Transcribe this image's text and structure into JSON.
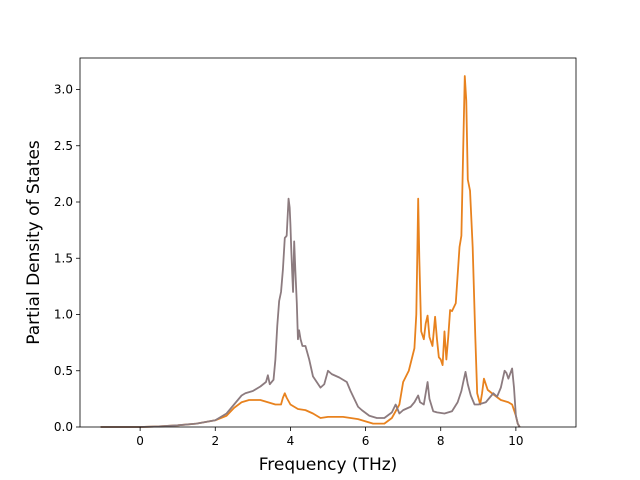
{
  "chart_data": {
    "type": "line",
    "title": "",
    "xlabel": "Frequency (THz)",
    "ylabel": "Partial Density of States",
    "xlim": [
      -1.6,
      11.6
    ],
    "ylim": [
      0,
      3.28
    ],
    "xticks": [
      0,
      2,
      4,
      6,
      8,
      10
    ],
    "yticks": [
      0.0,
      0.5,
      1.0,
      1.5,
      2.0,
      2.5,
      3.0
    ],
    "ytick_labels": [
      "0.0",
      "0.5",
      "1.0",
      "1.5",
      "2.0",
      "2.5",
      "3.0"
    ],
    "grid": false,
    "legend": "none",
    "series": [
      {
        "color": "#e8821e",
        "points": [
          [
            -1.05,
            0
          ],
          [
            0,
            0
          ],
          [
            0.5,
            0.005
          ],
          [
            1.0,
            0.015
          ],
          [
            1.5,
            0.03
          ],
          [
            2.0,
            0.06
          ],
          [
            2.3,
            0.1
          ],
          [
            2.5,
            0.17
          ],
          [
            2.7,
            0.22
          ],
          [
            2.9,
            0.24
          ],
          [
            3.2,
            0.24
          ],
          [
            3.4,
            0.22
          ],
          [
            3.6,
            0.2
          ],
          [
            3.75,
            0.2
          ],
          [
            3.8,
            0.26
          ],
          [
            3.85,
            0.3
          ],
          [
            3.9,
            0.26
          ],
          [
            4.0,
            0.2
          ],
          [
            4.2,
            0.16
          ],
          [
            4.4,
            0.15
          ],
          [
            4.6,
            0.12
          ],
          [
            4.8,
            0.08
          ],
          [
            5.0,
            0.09
          ],
          [
            5.4,
            0.09
          ],
          [
            5.8,
            0.07
          ],
          [
            6.0,
            0.05
          ],
          [
            6.2,
            0.03
          ],
          [
            6.5,
            0.03
          ],
          [
            6.7,
            0.08
          ],
          [
            6.9,
            0.2
          ],
          [
            7.0,
            0.4
          ],
          [
            7.15,
            0.5
          ],
          [
            7.3,
            0.7
          ],
          [
            7.35,
            1.0
          ],
          [
            7.38,
            1.6
          ],
          [
            7.4,
            2.03
          ],
          [
            7.43,
            1.5
          ],
          [
            7.48,
            0.85
          ],
          [
            7.55,
            0.78
          ],
          [
            7.6,
            0.92
          ],
          [
            7.65,
            0.99
          ],
          [
            7.7,
            0.8
          ],
          [
            7.78,
            0.72
          ],
          [
            7.85,
            0.98
          ],
          [
            7.9,
            0.78
          ],
          [
            7.95,
            0.62
          ],
          [
            8.0,
            0.6
          ],
          [
            8.05,
            0.55
          ],
          [
            8.1,
            0.85
          ],
          [
            8.15,
            0.6
          ],
          [
            8.2,
            0.8
          ],
          [
            8.25,
            1.04
          ],
          [
            8.3,
            1.03
          ],
          [
            8.4,
            1.1
          ],
          [
            8.5,
            1.6
          ],
          [
            8.55,
            1.7
          ],
          [
            8.6,
            2.5
          ],
          [
            8.64,
            3.12
          ],
          [
            8.68,
            2.9
          ],
          [
            8.72,
            2.2
          ],
          [
            8.78,
            2.1
          ],
          [
            8.85,
            1.6
          ],
          [
            8.92,
            0.8
          ],
          [
            8.97,
            0.3
          ],
          [
            9.05,
            0.2
          ],
          [
            9.1,
            0.3
          ],
          [
            9.15,
            0.43
          ],
          [
            9.25,
            0.33
          ],
          [
            9.4,
            0.29
          ],
          [
            9.6,
            0.24
          ],
          [
            9.8,
            0.22
          ],
          [
            9.9,
            0.2
          ],
          [
            9.95,
            0.15
          ],
          [
            10.0,
            0.1
          ],
          [
            10.05,
            0.03
          ],
          [
            10.1,
            0
          ]
        ]
      },
      {
        "color": "#8c7b7f",
        "points": [
          [
            -1.05,
            0
          ],
          [
            0,
            0
          ],
          [
            0.5,
            0.005
          ],
          [
            1.0,
            0.015
          ],
          [
            1.5,
            0.03
          ],
          [
            2.0,
            0.06
          ],
          [
            2.3,
            0.12
          ],
          [
            2.5,
            0.2
          ],
          [
            2.7,
            0.28
          ],
          [
            2.8,
            0.3
          ],
          [
            3.0,
            0.32
          ],
          [
            3.2,
            0.36
          ],
          [
            3.35,
            0.4
          ],
          [
            3.4,
            0.46
          ],
          [
            3.45,
            0.38
          ],
          [
            3.55,
            0.42
          ],
          [
            3.6,
            0.6
          ],
          [
            3.65,
            0.9
          ],
          [
            3.7,
            1.12
          ],
          [
            3.75,
            1.2
          ],
          [
            3.8,
            1.4
          ],
          [
            3.85,
            1.68
          ],
          [
            3.9,
            1.7
          ],
          [
            3.95,
            2.03
          ],
          [
            3.98,
            1.95
          ],
          [
            4.0,
            1.8
          ],
          [
            4.02,
            1.6
          ],
          [
            4.05,
            1.35
          ],
          [
            4.07,
            1.2
          ],
          [
            4.1,
            1.65
          ],
          [
            4.13,
            1.4
          ],
          [
            4.17,
            1.1
          ],
          [
            4.2,
            0.78
          ],
          [
            4.23,
            0.86
          ],
          [
            4.27,
            0.78
          ],
          [
            4.32,
            0.72
          ],
          [
            4.4,
            0.72
          ],
          [
            4.5,
            0.6
          ],
          [
            4.6,
            0.45
          ],
          [
            4.7,
            0.4
          ],
          [
            4.8,
            0.35
          ],
          [
            4.9,
            0.38
          ],
          [
            5.0,
            0.5
          ],
          [
            5.1,
            0.47
          ],
          [
            5.3,
            0.44
          ],
          [
            5.5,
            0.4
          ],
          [
            5.6,
            0.32
          ],
          [
            5.7,
            0.25
          ],
          [
            5.8,
            0.18
          ],
          [
            5.9,
            0.15
          ],
          [
            6.1,
            0.1
          ],
          [
            6.3,
            0.08
          ],
          [
            6.5,
            0.08
          ],
          [
            6.7,
            0.13
          ],
          [
            6.8,
            0.2
          ],
          [
            6.9,
            0.12
          ],
          [
            7.0,
            0.15
          ],
          [
            7.2,
            0.18
          ],
          [
            7.3,
            0.22
          ],
          [
            7.4,
            0.28
          ],
          [
            7.45,
            0.22
          ],
          [
            7.55,
            0.2
          ],
          [
            7.65,
            0.4
          ],
          [
            7.7,
            0.25
          ],
          [
            7.8,
            0.14
          ],
          [
            7.9,
            0.13
          ],
          [
            8.1,
            0.12
          ],
          [
            8.3,
            0.14
          ],
          [
            8.45,
            0.22
          ],
          [
            8.55,
            0.32
          ],
          [
            8.6,
            0.4
          ],
          [
            8.66,
            0.49
          ],
          [
            8.72,
            0.38
          ],
          [
            8.8,
            0.28
          ],
          [
            8.9,
            0.2
          ],
          [
            9.0,
            0.2
          ],
          [
            9.2,
            0.22
          ],
          [
            9.4,
            0.3
          ],
          [
            9.5,
            0.27
          ],
          [
            9.6,
            0.35
          ],
          [
            9.7,
            0.5
          ],
          [
            9.75,
            0.48
          ],
          [
            9.8,
            0.43
          ],
          [
            9.9,
            0.52
          ],
          [
            9.95,
            0.35
          ],
          [
            10.0,
            0.1
          ],
          [
            10.05,
            0.03
          ],
          [
            10.1,
            0
          ]
        ]
      }
    ]
  }
}
